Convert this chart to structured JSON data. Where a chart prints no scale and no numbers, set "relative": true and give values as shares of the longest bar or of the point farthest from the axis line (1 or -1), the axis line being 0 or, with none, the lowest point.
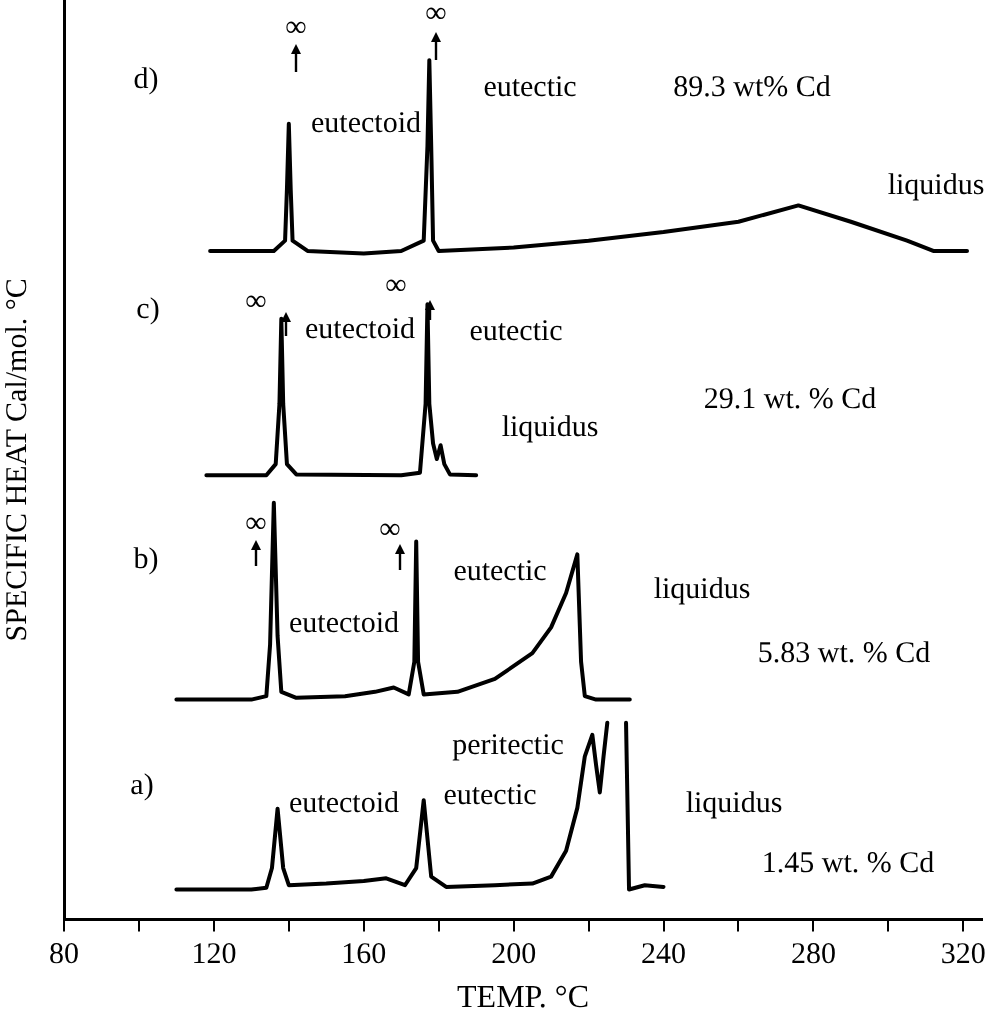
{
  "chart_data": {
    "type": "line",
    "relative": true,
    "xlabel": "TEMP. °C",
    "ylabel": "SPECIFIC HEAT Cal/mol. °C",
    "xlim": [
      80,
      325
    ],
    "xticks": [
      80,
      {
        "value": 100,
        "label": null
      },
      120,
      {
        "value": 140,
        "label": null
      },
      160,
      {
        "value": 180,
        "label": null
      },
      200,
      {
        "value": 220,
        "label": null
      },
      240,
      {
        "value": 260,
        "label": null
      },
      280,
      {
        "value": 300,
        "label": null
      },
      320
    ],
    "grid": false,
    "legend": false,
    "marker": "none",
    "line_style": "solid",
    "series": [
      {
        "color": "#000000",
        "x": [
          110,
          130,
          134,
          135.5,
          137,
          138.5,
          140,
          150,
          160,
          166,
          171,
          174,
          176,
          178,
          182,
          195,
          205,
          210,
          214,
          217,
          219,
          221,
          222,
          223,
          224,
          225,
          227,
          230,
          230.8,
          235,
          240
        ],
        "values": [
          0.035,
          0.035,
          0.037,
          0.06,
          0.129,
          0.06,
          0.04,
          0.042,
          0.045,
          0.048,
          0.04,
          0.06,
          0.139,
          0.05,
          0.038,
          0.04,
          0.042,
          0.05,
          0.08,
          0.13,
          0.19,
          0.215,
          0.18,
          0.148,
          0.19,
          0.229,
          null,
          0.229,
          0.035,
          0.04,
          0.038
        ]
      },
      {
        "color": "#000000",
        "x": [
          110,
          130,
          134,
          135,
          136,
          137,
          138,
          142,
          155,
          163,
          168,
          172,
          173.5,
          174,
          174.5,
          176,
          185,
          195,
          205,
          210,
          214,
          217,
          218,
          219,
          222,
          231
        ],
        "values": [
          0.256,
          0.256,
          0.26,
          0.32,
          0.485,
          0.33,
          0.265,
          0.258,
          0.26,
          0.265,
          0.27,
          0.262,
          0.3,
          0.44,
          0.3,
          0.262,
          0.265,
          0.28,
          0.31,
          0.34,
          0.38,
          0.425,
          0.3,
          0.26,
          0.256,
          0.256
        ]
      },
      {
        "color": "#000000",
        "x": [
          118,
          134,
          136.5,
          137.5,
          138,
          138.5,
          139.5,
          142,
          170,
          175,
          176.5,
          177,
          177.5,
          178.5,
          179.5,
          180.5,
          181.5,
          183,
          190
        ],
        "values": [
          0.517,
          0.517,
          0.53,
          0.6,
          0.699,
          0.6,
          0.53,
          0.518,
          0.517,
          0.52,
          0.6,
          0.716,
          0.6,
          0.554,
          0.536,
          0.552,
          0.53,
          0.518,
          0.517
        ]
      },
      {
        "color": "#000000",
        "x": [
          119,
          136,
          139,
          139.5,
          140,
          140.5,
          141,
          145,
          160,
          170,
          176,
          177,
          177.5,
          178,
          178.5,
          180,
          200,
          220,
          240,
          260,
          276,
          290,
          305,
          312,
          321
        ],
        "values": [
          0.778,
          0.778,
          0.79,
          0.85,
          0.926,
          0.85,
          0.79,
          0.778,
          0.775,
          0.778,
          0.79,
          0.9,
          1,
          0.9,
          0.79,
          0.778,
          0.782,
          0.79,
          0.8,
          0.812,
          0.831,
          0.812,
          0.79,
          0.778,
          0.778
        ]
      }
    ],
    "annotations": [
      "d)",
      "∞",
      "∞",
      "eutectoid",
      "eutectic",
      "89.3 wt% Cd",
      "liquidus",
      "c)",
      "∞",
      "∞",
      "eutectoid",
      "eutectic",
      "29.1 wt. % Cd",
      "liquidus",
      "b)",
      "∞",
      "∞",
      "eutectoid",
      "eutectic",
      "liquidus",
      "5.83 wt. % Cd",
      "a)",
      "eutectoid",
      "eutectic",
      "peritectic",
      "liquidus",
      "1.45 wt. % Cd"
    ]
  }
}
